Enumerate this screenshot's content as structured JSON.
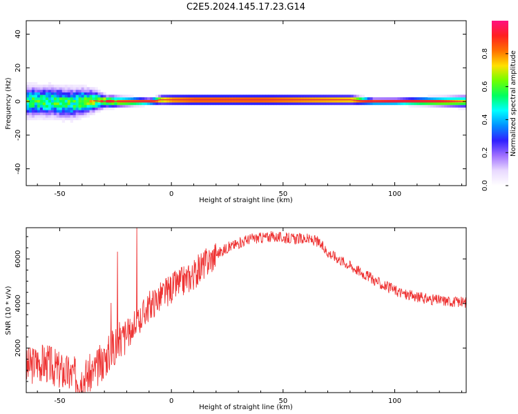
{
  "figure_title": "C2E5.2024.145.17.23.G14",
  "colors": {
    "snr_line": "#ee3333",
    "spectrum_ridge": "#e0204a",
    "colormap": [
      "#ffffff",
      "#e9d9ff",
      "#a070ff",
      "#3020ff",
      "#0090ff",
      "#00ffff",
      "#00ff60",
      "#70ff00",
      "#ffe000",
      "#ff7000",
      "#ff2020",
      "#ff1080"
    ]
  },
  "chart_data": [
    {
      "type": "heatmap",
      "xlabel": "Height of straight line (km)",
      "ylabel": "Frequency (Hz)",
      "xlim": [
        -65,
        132
      ],
      "ylim": [
        -50,
        48
      ],
      "x_ticks": [
        -50,
        0,
        50,
        100
      ],
      "y_ticks": [
        -40,
        -20,
        0,
        20,
        40
      ],
      "x_tick_labels": [
        "-50",
        "0",
        "50",
        "100"
      ],
      "y_tick_labels": [
        "-40",
        "-20",
        "0",
        "20",
        "40"
      ],
      "ridge": {
        "x": [
          -65,
          -55,
          -45,
          -40,
          -35,
          -30,
          -20,
          -10,
          -5,
          0,
          10,
          20,
          40,
          60,
          80,
          90,
          100,
          120,
          132
        ],
        "freq": [
          0,
          0,
          -1,
          0,
          0.5,
          0,
          0,
          0,
          1,
          1,
          1,
          1,
          1,
          1,
          1,
          0,
          0,
          0,
          0
        ],
        "width_hz": [
          10,
          10,
          10,
          9,
          7,
          4,
          3,
          2,
          3,
          3,
          3,
          3,
          3,
          3,
          3,
          2,
          2,
          3,
          4
        ],
        "peak_amplitude": [
          0.55,
          0.55,
          0.55,
          0.6,
          0.65,
          0.8,
          0.85,
          0.9,
          0.8,
          0.9,
          0.95,
          0.95,
          0.95,
          0.9,
          0.85,
          0.9,
          0.95,
          0.9,
          0.7
        ]
      },
      "colorbar": {
        "label": "Normalized spectral amplitude",
        "range": [
          0,
          1
        ],
        "ticks": [
          0,
          0.2,
          0.4,
          0.6,
          0.8
        ],
        "tick_labels": [
          "0.0",
          "0.2",
          "0.4",
          "0.6",
          "0.8"
        ]
      }
    },
    {
      "type": "line",
      "xlabel": "Height of straight line (km)",
      "ylabel": "SNR (10 * v/v)",
      "xlim": [
        -65,
        132
      ],
      "ylim": [
        0,
        7400
      ],
      "x_ticks": [
        -50,
        0,
        50,
        100
      ],
      "y_ticks": [
        2000,
        4000,
        6000
      ],
      "x_tick_labels": [
        "-50",
        "0",
        "50",
        "100"
      ],
      "y_tick_labels": [
        "2000",
        "4000",
        "6000"
      ],
      "series": [
        {
          "x": [
            -65,
            -60,
            -55,
            -50,
            -45,
            -40,
            -35,
            -30,
            -25,
            -20,
            -15,
            -10,
            -5,
            0,
            5,
            10,
            15,
            20,
            25,
            30,
            35,
            40,
            45,
            50,
            55,
            60,
            65,
            70,
            75,
            80,
            85,
            90,
            95,
            100,
            105,
            110,
            115,
            120,
            125,
            130,
            132
          ],
          "y": [
            1100,
            1400,
            1300,
            1000,
            800,
            700,
            900,
            1500,
            2200,
            2600,
            3200,
            3900,
            4300,
            4700,
            5000,
            5300,
            5800,
            6200,
            6500,
            6700,
            6900,
            6950,
            7000,
            6950,
            6900,
            6900,
            6800,
            6300,
            6000,
            5700,
            5400,
            5100,
            4800,
            4600,
            4400,
            4300,
            4200,
            4150,
            4100,
            4050,
            4050
          ]
        }
      ]
    }
  ]
}
